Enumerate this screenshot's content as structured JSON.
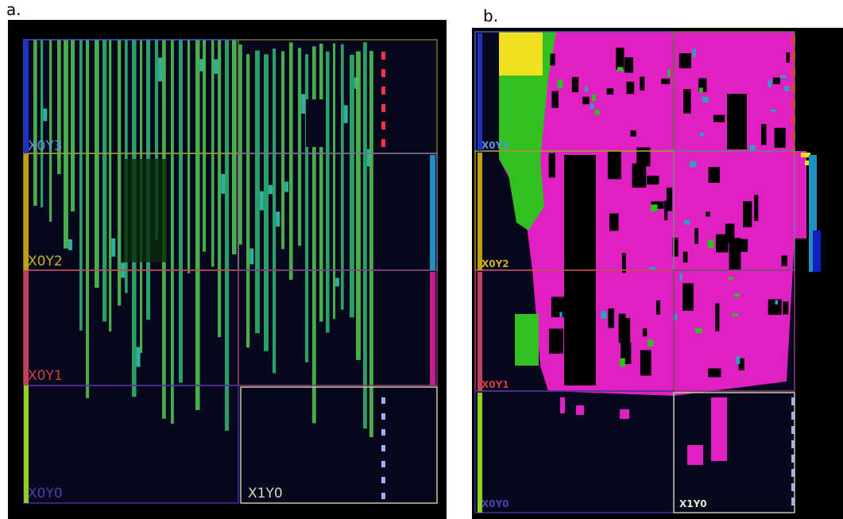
{
  "panels": [
    {
      "label": "a.",
      "regions": [
        "X0Y3",
        "X0Y2",
        "X0Y1",
        "X0Y0",
        "X1Y0"
      ]
    },
    {
      "label": "b.",
      "regions": [
        "X0Y3",
        "X0Y2",
        "X0Y1",
        "X0Y0",
        "X1Y0"
      ]
    }
  ]
}
